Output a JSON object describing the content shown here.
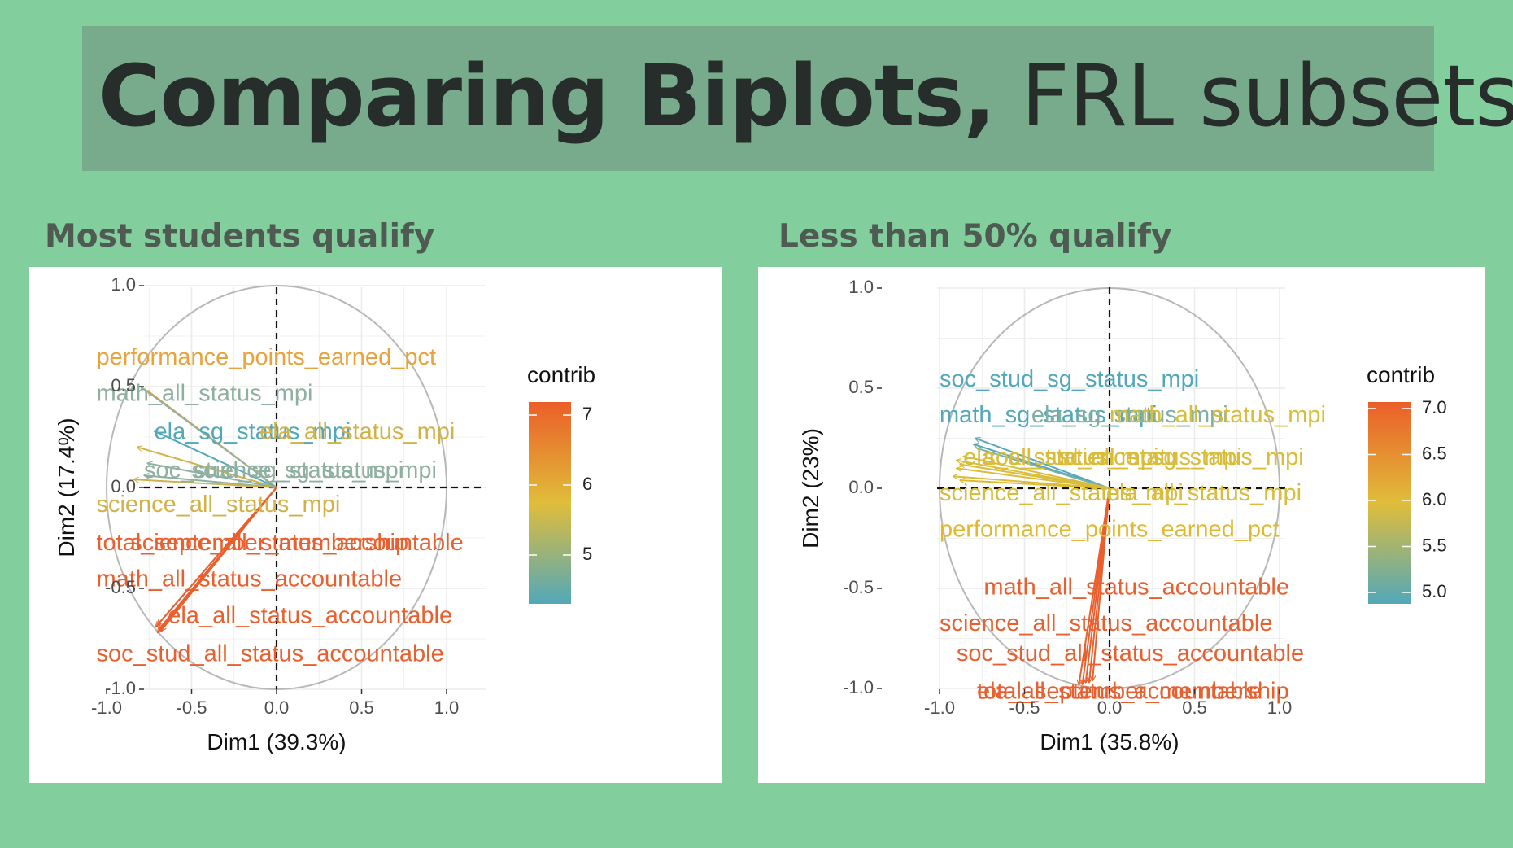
{
  "title": {
    "bold": "Comparing Biplots,",
    "regular": "FRL subsets"
  },
  "chart_data": [
    {
      "type": "scatter",
      "subtitle": "Most students qualify",
      "xlabel": "Dim1 (39.3%)",
      "ylabel": "Dim2 (17.4%)",
      "xlim": [
        -1.0,
        1.0
      ],
      "ylim": [
        -1.0,
        1.0
      ],
      "xticks": [
        "-1.0",
        "-0.5",
        "0.0",
        "0.5",
        "1.0"
      ],
      "yticks": [
        "1.0",
        "0.5",
        "0.0",
        "-0.5",
        "-1.0"
      ],
      "grid": true,
      "legend": {
        "title": "contrib",
        "position": "right",
        "ticks": [
          "7",
          "6",
          "5"
        ]
      },
      "colors": {
        "low": "#52a8ba",
        "mid": "#e0bd3a",
        "high": "#eb5e28"
      },
      "series": [
        {
          "name": "performance_points_earned_pct",
          "x": -0.76,
          "y": 0.48,
          "color": "#e8a33a"
        },
        {
          "name": "math_all_status_mpi",
          "x": -0.8,
          "y": 0.5,
          "color": "#8fb0a0"
        },
        {
          "name": "ela_sg_status_mpi",
          "x": -0.72,
          "y": 0.28,
          "color": "#52a8ba"
        },
        {
          "name": "ela_all_status_mpi",
          "x": -0.82,
          "y": 0.2,
          "color": "#d2b248"
        },
        {
          "name": "soc_stud_sg_status_mpi",
          "x": -0.76,
          "y": 0.12,
          "color": "#8fb0a0"
        },
        {
          "name": "science_sg_status_mpi",
          "x": -0.78,
          "y": 0.06,
          "color": "#8fb0a0"
        },
        {
          "name": "science_all_status_mpi",
          "x": -0.84,
          "y": 0.04,
          "color": "#d2b248"
        },
        {
          "name": "total_september_membership",
          "x": -0.7,
          "y": -0.68,
          "color": "#ea5f2e"
        },
        {
          "name": "science_all_status_accountable",
          "x": -0.71,
          "y": -0.69,
          "color": "#ea5f2e"
        },
        {
          "name": "math_all_status_accountable",
          "x": -0.69,
          "y": -0.7,
          "color": "#ea5f2e"
        },
        {
          "name": "ela_all_status_accountable",
          "x": -0.68,
          "y": -0.71,
          "color": "#ea5f2e"
        },
        {
          "name": "soc_stud_all_status_accountable",
          "x": -0.7,
          "y": -0.72,
          "color": "#ea5f2e"
        }
      ],
      "labels": [
        {
          "text": "performance_points_earned_pct",
          "x": -1.06,
          "y": 0.64,
          "color": "#e8a33a"
        },
        {
          "text": "math_all_status_mpi",
          "x": -1.06,
          "y": 0.46,
          "color": "#8fb0a0"
        },
        {
          "text": "ela_sg_status_mpi",
          "x": -0.72,
          "y": 0.27,
          "color": "#52a8ba"
        },
        {
          "text": "ela_all_status_mpi",
          "x": -0.1,
          "y": 0.27,
          "color": "#d2b248"
        },
        {
          "text": "soc_stud_sg_status_mpi",
          "x": -0.78,
          "y": 0.08,
          "color": "#8fb0a0"
        },
        {
          "text": "science_sg_status_mpi",
          "x": -0.5,
          "y": 0.08,
          "color": "#8fb0a0"
        },
        {
          "text": "science_all_status_mpi",
          "x": -1.06,
          "y": -0.09,
          "color": "#d2b248"
        },
        {
          "text": "total_september_membership",
          "x": -1.06,
          "y": -0.28,
          "color": "#ea5f2e"
        },
        {
          "text": "science_all_status_accountable",
          "x": -0.86,
          "y": -0.28,
          "color": "#ea5f2e"
        },
        {
          "text": "math_all_status_accountable",
          "x": -1.06,
          "y": -0.46,
          "color": "#ea5f2e"
        },
        {
          "text": "ela_all_status_accountable",
          "x": -0.64,
          "y": -0.64,
          "color": "#ea5f2e"
        },
        {
          "text": "soc_stud_all_status_accountable",
          "x": -1.06,
          "y": -0.83,
          "color": "#ea5f2e"
        }
      ]
    },
    {
      "type": "scatter",
      "subtitle": "Less than 50% qualify",
      "xlabel": "Dim1 (35.8%)",
      "ylabel": "Dim2 (23%)",
      "xlim": [
        -1.0,
        1.0
      ],
      "ylim": [
        -1.0,
        1.0
      ],
      "xticks": [
        "-1.0",
        "-0.5",
        "0.0",
        "0.5",
        "1.0"
      ],
      "yticks": [
        "1.0",
        "0.5",
        "0.0",
        "-0.5",
        "-1.0"
      ],
      "grid": true,
      "legend": {
        "title": "contrib",
        "position": "right",
        "ticks": [
          "7.0",
          "6.5",
          "6.0",
          "5.5",
          "5.0"
        ]
      },
      "colors": {
        "low": "#52a8ba",
        "mid": "#e0bd3a",
        "high": "#eb5e28"
      },
      "series": [
        {
          "name": "soc_stud_sg_status_mpi",
          "x": -0.79,
          "y": 0.25,
          "color": "#52a8ba"
        },
        {
          "name": "math_sg_status_mpi",
          "x": -0.8,
          "y": 0.22,
          "color": "#52a8ba"
        },
        {
          "name": "ela_sg_status_mpi",
          "x": -0.78,
          "y": 0.2,
          "color": "#7fb0a2"
        },
        {
          "name": "math_all_status_mpi",
          "x": -0.86,
          "y": 0.16,
          "color": "#d9bd3a"
        },
        {
          "name": "ela_all_status_mpi",
          "x": -0.9,
          "y": 0.14,
          "color": "#d9bd3a"
        },
        {
          "name": "soc_stud_all_status_mpi",
          "x": -0.88,
          "y": 0.12,
          "color": "#d9bd3a"
        },
        {
          "name": "science_sg_status_mpi",
          "x": -0.9,
          "y": 0.1,
          "color": "#d9bd3a"
        },
        {
          "name": "science_all_status_mpi",
          "x": -0.92,
          "y": 0.06,
          "color": "#d9bd3a"
        },
        {
          "name": "performance_points_earned_pct",
          "x": -0.88,
          "y": 0.04,
          "color": "#e0b930"
        },
        {
          "name": "math_all_status_accountable",
          "x": -0.1,
          "y": -0.96,
          "color": "#ea5f2e"
        },
        {
          "name": "science_all_status_accountable",
          "x": -0.12,
          "y": -0.97,
          "color": "#ea5f2e"
        },
        {
          "name": "soc_stud_all_status_accountable",
          "x": -0.14,
          "y": -0.97,
          "color": "#ea5f2e"
        },
        {
          "name": "ela_all_status_accountable",
          "x": -0.16,
          "y": -0.98,
          "color": "#ea5f2e"
        },
        {
          "name": "total_september_membership",
          "x": -0.18,
          "y": -0.98,
          "color": "#ea5f2e"
        }
      ],
      "labels": [
        {
          "text": "soc_stud_sg_status_mpi",
          "x": -1.0,
          "y": 0.54,
          "color": "#52a8ba"
        },
        {
          "text": "math_sg_status_mpi",
          "x": -1.0,
          "y": 0.36,
          "color": "#52a8ba"
        },
        {
          "text": "ela_sg_status_mpi",
          "x": -0.46,
          "y": 0.36,
          "color": "#7fb0a2"
        },
        {
          "text": "math_all_status_mpi",
          "x": 0.0,
          "y": 0.36,
          "color": "#d9bd3a"
        },
        {
          "text": "ela_all_status_mpi",
          "x": -0.86,
          "y": 0.15,
          "color": "#d9bd3a"
        },
        {
          "text": "soc_stud_all_status_mpi",
          "x": -0.74,
          "y": 0.15,
          "color": "#d9bd3a"
        },
        {
          "text": "science_sg_status_mpi",
          "x": -0.3,
          "y": 0.15,
          "color": "#d9bd3a"
        },
        {
          "text": "science_all_status_mpi",
          "x": -1.0,
          "y": -0.03,
          "color": "#d9bd3a"
        },
        {
          "text": "ela_all_status_mpi",
          "x": -0.02,
          "y": -0.03,
          "color": "#d9bd3a"
        },
        {
          "text": "performance_points_earned_pct",
          "x": -1.0,
          "y": -0.21,
          "color": "#e0b930"
        },
        {
          "text": "math_all_status_accountable",
          "x": -0.74,
          "y": -0.5,
          "color": "#ea5f2e"
        },
        {
          "text": "science_all_status_accountable",
          "x": -1.0,
          "y": -0.68,
          "color": "#ea5f2e"
        },
        {
          "text": "soc_stud_all_status_accountable",
          "x": -0.9,
          "y": -0.83,
          "color": "#ea5f2e"
        },
        {
          "text": "ela_all_status_accountable",
          "x": -0.78,
          "y": -1.02,
          "color": "#ea5f2e"
        },
        {
          "text": "total_september_membership",
          "x": -0.78,
          "y": -1.02,
          "color": "#ea5f2e"
        }
      ]
    }
  ]
}
